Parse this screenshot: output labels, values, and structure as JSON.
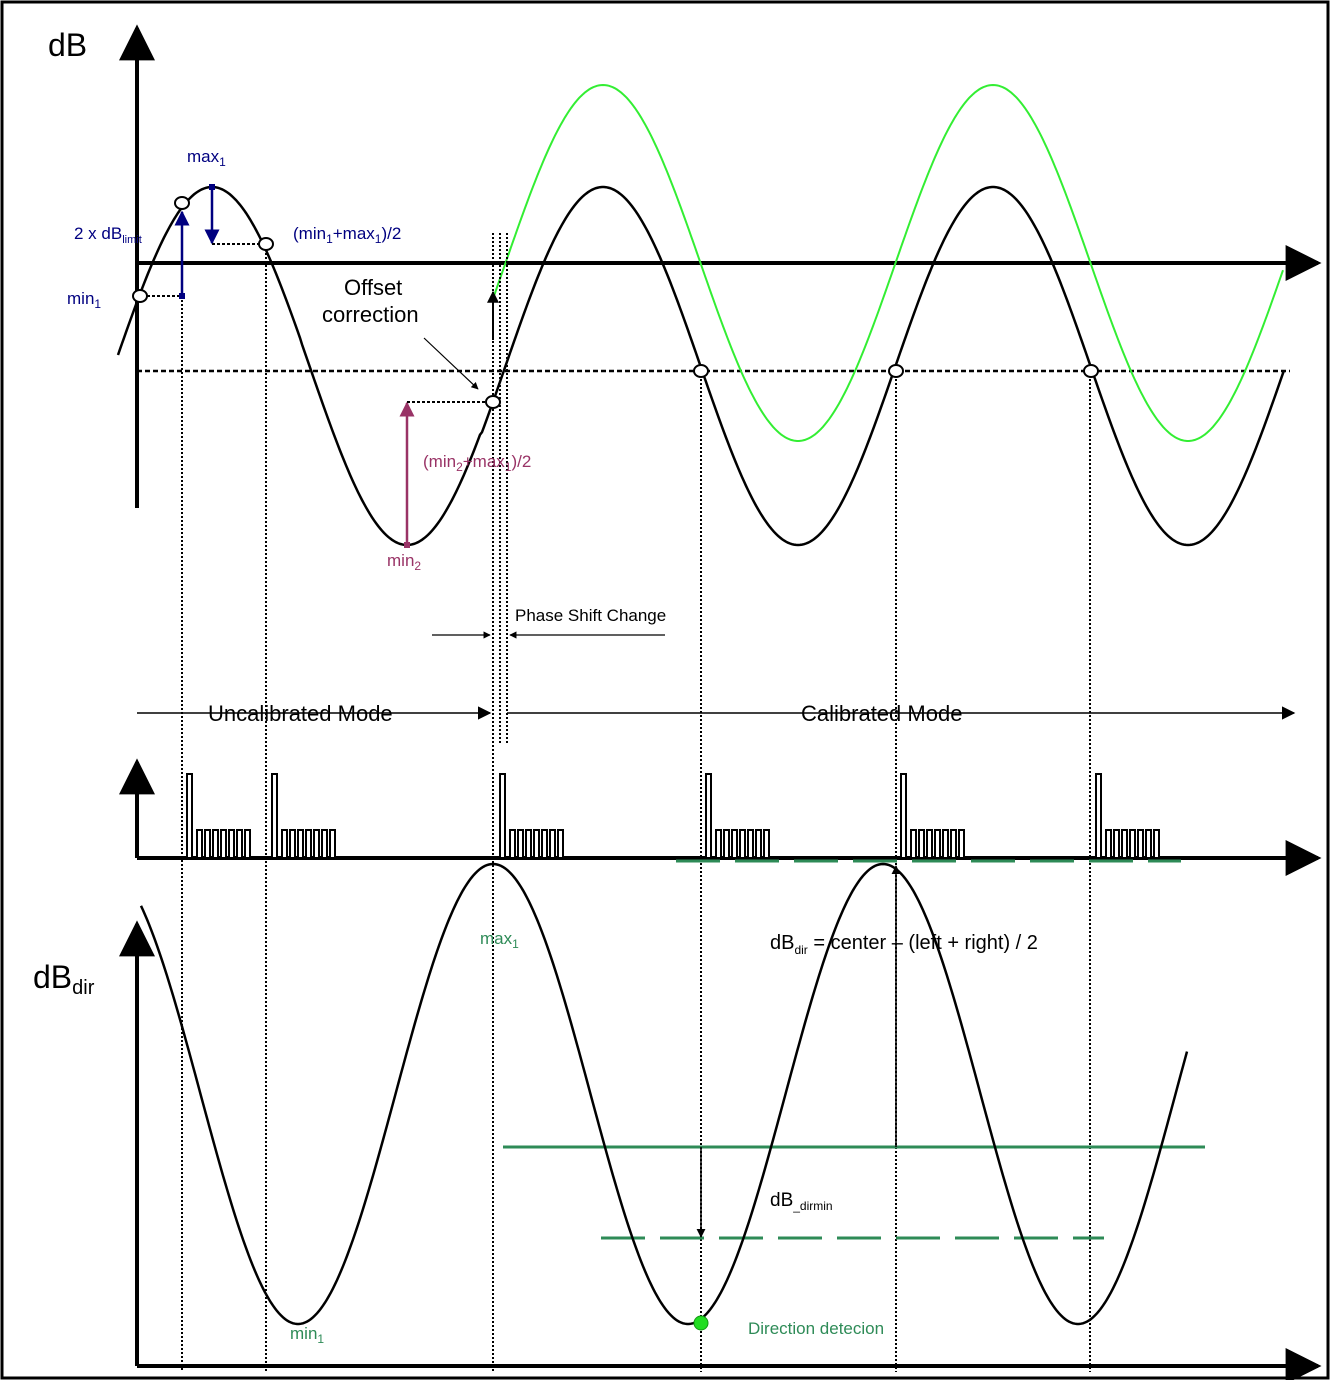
{
  "top_plot": {
    "y_axis_label": "dB",
    "labels": {
      "max1": {
        "base": "max",
        "sub": "1"
      },
      "min1": {
        "base": "min",
        "sub": "1"
      },
      "dblimit": {
        "base": "2 x dB",
        "sub": "limit"
      },
      "mid1": {
        "p1": "(min",
        "s1": "1",
        "p2": "+max",
        "s2": "1",
        "p3": ")/2"
      },
      "mid2": {
        "p1": "(min",
        "s1": "2",
        "p2": "+max",
        "s2": "1",
        "p3": ")/2"
      },
      "min2": {
        "base": "min",
        "sub": "2"
      },
      "offset_line1": "Offset",
      "offset_line2": "correction",
      "phase_shift": "Phase Shift Change"
    }
  },
  "mode_bar": {
    "uncalibrated": "Uncalibrated Mode",
    "calibrated": "Calibrated Mode"
  },
  "bottom_plot": {
    "y_axis_label": {
      "base": "dB",
      "sub": "dir"
    },
    "formula": {
      "base": "dB",
      "sub": "dir",
      "rest": " = center – (left + right) / 2"
    },
    "max1": {
      "base": "max",
      "sub": "1"
    },
    "min1": {
      "base": "min",
      "sub": "1"
    },
    "dirmin": {
      "base": "dB",
      "sub": "_dirmin"
    },
    "direction_detection": "Direction detecion"
  },
  "colors": {
    "black_curve": "#000000",
    "green_curve": "#33ee33",
    "navy": "#000080",
    "maroon": "#993366",
    "teal": "#2e8b57",
    "green_dot": "#22dd22"
  }
}
